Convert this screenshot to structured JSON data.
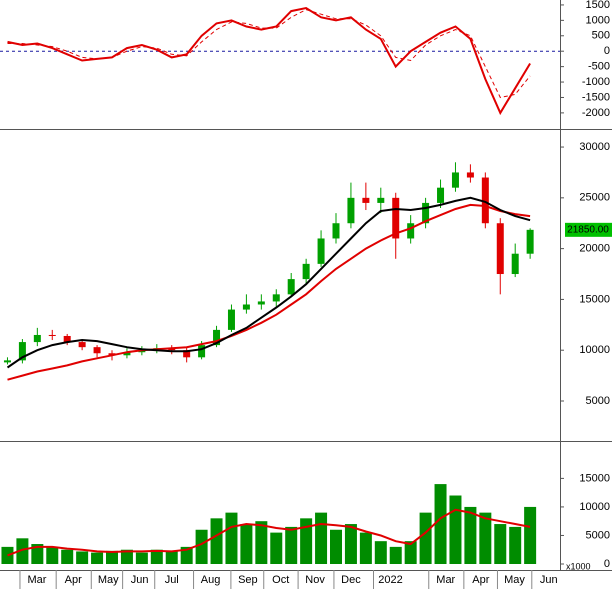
{
  "chart_data": [
    {
      "type": "line",
      "x": [
        1,
        3,
        5,
        7,
        9,
        11,
        13,
        15,
        17,
        19,
        21,
        23,
        25,
        27,
        29,
        31,
        33,
        35,
        37,
        39,
        41,
        43,
        45,
        47,
        49,
        51,
        53,
        55,
        57,
        59,
        61,
        63,
        65,
        67,
        69,
        71
      ],
      "series": [
        {
          "color": "#e00000",
          "dash": false,
          "values": [
            300,
            200,
            250,
            100,
            -100,
            -300,
            -250,
            -200,
            100,
            200,
            50,
            -200,
            -100,
            500,
            900,
            1000,
            800,
            700,
            800,
            1300,
            1400,
            1100,
            1000,
            1100,
            700,
            400,
            -500,
            0,
            300,
            600,
            800,
            400,
            -900,
            -2000,
            -1200,
            -400
          ]
        },
        {
          "color": "#e00000",
          "dash": true,
          "values": [
            250,
            250,
            200,
            150,
            0,
            -200,
            -250,
            -200,
            0,
            150,
            100,
            -100,
            -150,
            300,
            700,
            950,
            900,
            750,
            750,
            1100,
            1350,
            1200,
            1050,
            1050,
            850,
            500,
            -200,
            -300,
            200,
            500,
            700,
            500,
            -500,
            -1500,
            -1400,
            -800
          ]
        }
      ],
      "reference_line": 0,
      "reference_color": "#1a1aa0",
      "xlim": [
        0,
        75
      ],
      "ylim": [
        -2490,
        1660
      ],
      "yticks": [
        1500,
        1000,
        500,
        0,
        -500,
        -1000,
        -1500,
        -2000
      ]
    },
    {
      "type": "candlestick",
      "x": [
        1,
        3,
        5,
        7,
        9,
        11,
        13,
        15,
        17,
        19,
        21,
        23,
        25,
        27,
        29,
        31,
        33,
        35,
        37,
        39,
        41,
        43,
        45,
        47,
        49,
        51,
        53,
        55,
        57,
        59,
        61,
        63,
        65,
        67,
        69,
        71
      ],
      "open": [
        8800,
        9000,
        10800,
        11500,
        11400,
        10800,
        10300,
        9700,
        9500,
        9800,
        10000,
        10200,
        10000,
        9300,
        10500,
        12000,
        14000,
        14500,
        14800,
        15500,
        17000,
        18500,
        21000,
        22500,
        25000,
        24500,
        25000,
        21000,
        22500,
        24500,
        26000,
        27500,
        27000,
        22500,
        17500,
        19500
      ],
      "high": [
        9300,
        11100,
        12200,
        12000,
        11600,
        11000,
        10500,
        10000,
        10200,
        10400,
        10600,
        10500,
        10300,
        10900,
        12400,
        14500,
        15500,
        15500,
        16000,
        17600,
        19000,
        21800,
        23500,
        26500,
        26500,
        26000,
        25500,
        23300,
        25000,
        26800,
        28500,
        28300,
        27500,
        23000,
        20500,
        22000
      ],
      "low": [
        8600,
        8700,
        10400,
        11000,
        10500,
        10000,
        9300,
        9000,
        9200,
        9500,
        9700,
        9600,
        8800,
        9100,
        10300,
        11800,
        13600,
        14000,
        14300,
        15200,
        16600,
        18200,
        20500,
        22000,
        23800,
        23500,
        19000,
        20500,
        22000,
        24000,
        25600,
        26500,
        22000,
        15500,
        17200,
        19000
      ],
      "close": [
        9000,
        10800,
        11500,
        11400,
        10800,
        10300,
        9700,
        9500,
        9800,
        10000,
        10200,
        10000,
        9300,
        10500,
        12000,
        14000,
        14500,
        14800,
        15500,
        17000,
        18500,
        21000,
        22500,
        25000,
        24500,
        25000,
        21000,
        22500,
        24500,
        26000,
        27500,
        27000,
        22500,
        17500,
        19500,
        21850
      ],
      "up_color": "#00a000",
      "down_color": "#e00000",
      "series": [
        {
          "color": "#e00000",
          "values": [
            7100,
            7500,
            7900,
            8200,
            8500,
            8900,
            9200,
            9500,
            9800,
            10000,
            10100,
            10200,
            10300,
            10600,
            10900,
            11400,
            12000,
            12700,
            13500,
            14500,
            15500,
            16800,
            18000,
            19000,
            20000,
            20800,
            21500,
            22000,
            22700,
            23300,
            23900,
            24300,
            24200,
            23700,
            23400,
            23200
          ]
        },
        {
          "color": "#000000",
          "values": [
            8300,
            9300,
            10000,
            10500,
            10800,
            11000,
            10900,
            10600,
            10300,
            10100,
            10000,
            9900,
            9900,
            10100,
            10700,
            11500,
            12200,
            13200,
            14200,
            15300,
            16500,
            18000,
            19500,
            21000,
            22500,
            23700,
            23900,
            23800,
            24000,
            24300,
            24700,
            25000,
            24600,
            23800,
            23200,
            22800
          ]
        }
      ],
      "last_label": "21850.00",
      "last_label_color": "#00c000",
      "xlim": [
        0,
        75
      ],
      "ylim": [
        1160,
        31580
      ],
      "yticks": [
        30000,
        25000,
        20000,
        15000,
        10000,
        5000
      ]
    },
    {
      "type": "bar",
      "x": [
        1,
        3,
        5,
        7,
        9,
        11,
        13,
        15,
        17,
        19,
        21,
        23,
        25,
        27,
        29,
        31,
        33,
        35,
        37,
        39,
        41,
        43,
        45,
        47,
        49,
        51,
        53,
        55,
        57,
        59,
        61,
        63,
        65,
        67,
        69,
        71
      ],
      "values": [
        3000,
        4500,
        3500,
        3000,
        2500,
        2200,
        2000,
        2300,
        2500,
        2000,
        2500,
        2200,
        3000,
        6000,
        8000,
        9000,
        7000,
        7500,
        5500,
        6500,
        8000,
        9000,
        6000,
        7000,
        5500,
        4000,
        3000,
        4000,
        9000,
        14000,
        12000,
        10000,
        9000,
        7000,
        6500,
        10000
      ],
      "color": "#008c00",
      "series": [
        {
          "color": "#e00000",
          "values": [
            1500,
            2500,
            3000,
            3000,
            2700,
            2500,
            2200,
            2100,
            2200,
            2200,
            2300,
            2200,
            2500,
            3500,
            5000,
            6500,
            7000,
            6800,
            6300,
            6000,
            6500,
            7000,
            6800,
            6500,
            5700,
            5000,
            4000,
            3500,
            5500,
            8000,
            9500,
            9000,
            8000,
            7500,
            7000,
            6500
          ]
        }
      ],
      "unit_label": "x1000",
      "xlim": [
        0,
        75
      ],
      "ylim": [
        0,
        21200
      ],
      "yticks": [
        15000,
        10000,
        5000,
        0
      ],
      "xticks": [
        {
          "value": 4.95,
          "label": "Mar"
        },
        {
          "value": 9.8,
          "label": "Apr"
        },
        {
          "value": 14.5,
          "label": "May"
        },
        {
          "value": 18.7,
          "label": "Jun"
        },
        {
          "value": 23,
          "label": "Jul"
        },
        {
          "value": 28.2,
          "label": "Aug"
        },
        {
          "value": 33.2,
          "label": "Sep"
        },
        {
          "value": 37.6,
          "label": "Oct"
        },
        {
          "value": 42.2,
          "label": "Nov"
        },
        {
          "value": 47,
          "label": "Dec"
        },
        {
          "value": 52.3,
          "label": "2022"
        },
        {
          "value": 59.7,
          "label": "Mar"
        },
        {
          "value": 64.4,
          "label": "Apr"
        },
        {
          "value": 68.9,
          "label": "May"
        },
        {
          "value": 73.5,
          "label": "Jun"
        }
      ]
    }
  ]
}
